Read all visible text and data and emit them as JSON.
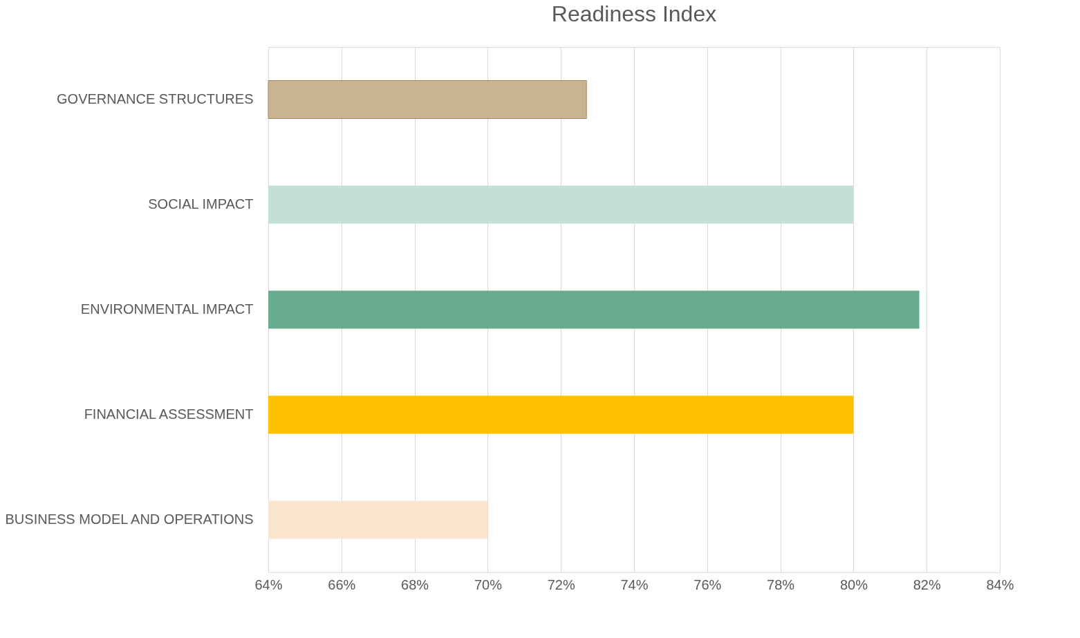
{
  "chart_data": {
    "type": "bar",
    "title": "Readiness Index",
    "orientation": "horizontal",
    "categories": [
      "GOVERNANCE STRUCTURES",
      "SOCIAL IMPACT",
      "ENVIRONMENTAL IMPACT",
      "FINANCIAL ASSESSMENT",
      "BUSINESS MODEL AND OPERATIONS"
    ],
    "values": [
      72.7,
      80,
      81.8,
      80,
      70
    ],
    "colors": [
      "#c8b493",
      "#c4e0d5",
      "#68ad90",
      "#ffc000",
      "#f9e4cd"
    ],
    "xlim": [
      64,
      84
    ],
    "xticks": [
      {
        "value": 64,
        "label": "64%"
      },
      {
        "value": 66,
        "label": "66%"
      },
      {
        "value": 68,
        "label": "68%"
      },
      {
        "value": 70,
        "label": "70%"
      },
      {
        "value": 72,
        "label": "72%"
      },
      {
        "value": 74,
        "label": "74%"
      },
      {
        "value": 76,
        "label": "76%"
      },
      {
        "value": 78,
        "label": "78%"
      },
      {
        "value": 80,
        "label": "80%"
      },
      {
        "value": 82,
        "label": "82%"
      },
      {
        "value": 84,
        "label": "84%"
      }
    ],
    "grid": "x",
    "legend": false
  }
}
